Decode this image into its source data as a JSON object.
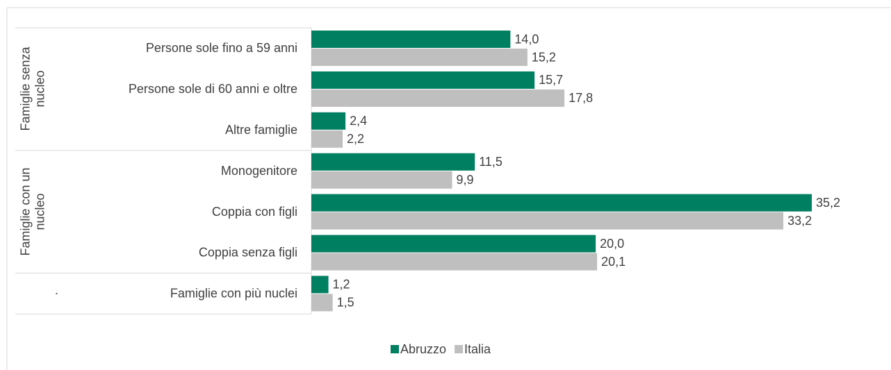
{
  "chart_data": {
    "type": "bar",
    "orientation": "horizontal",
    "groups": [
      "Famiglie senza nucleo",
      "Famiglie con un nucleo",
      "."
    ],
    "categories": [
      "Persone sole fino a 59 anni",
      "Persone sole di 60 anni e oltre",
      "Altre famiglie",
      "Monogenitore",
      "Coppia con figli",
      "Coppia senza figli",
      "Famiglie con più nuclei"
    ],
    "series": [
      {
        "name": "Abruzzo",
        "color": "#007f61",
        "values": [
          14.0,
          15.7,
          2.4,
          11.5,
          35.2,
          20.0,
          1.2
        ],
        "value_labels": [
          "14,0",
          "15,7",
          "2,4",
          "11,5",
          "35,2",
          "20,0",
          "1,2"
        ]
      },
      {
        "name": "Italia",
        "color": "#bfbfbf",
        "values": [
          15.2,
          17.8,
          2.2,
          9.9,
          33.2,
          20.1,
          1.5
        ],
        "value_labels": [
          "15,2",
          "17,8",
          "2,2",
          "9,9",
          "33,2",
          "20,1",
          "1,5"
        ]
      }
    ],
    "legend": "bottom"
  }
}
